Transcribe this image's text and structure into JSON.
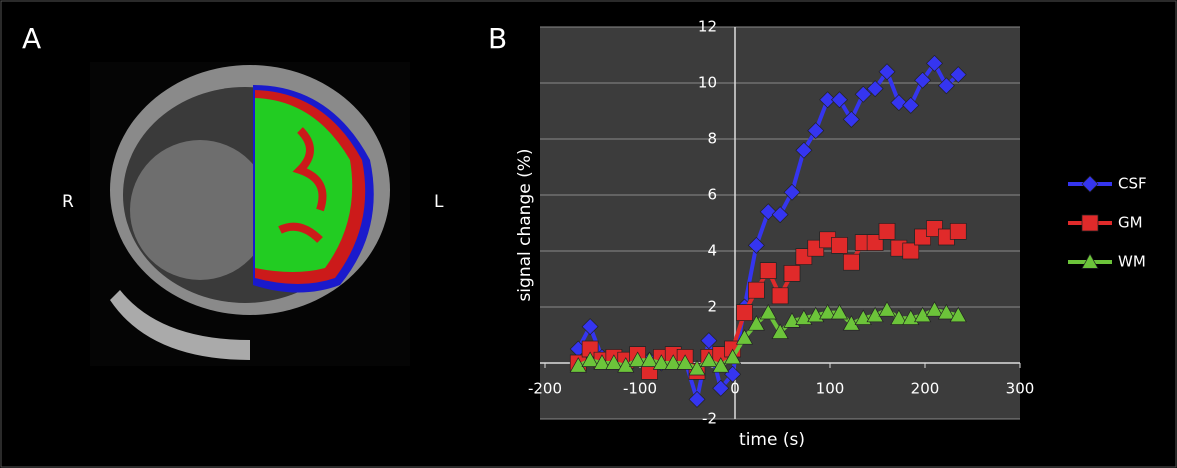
{
  "labels": {
    "panel_a": "A",
    "panel_b": "B",
    "right": "R",
    "left": "L"
  },
  "chart_data": {
    "type": "line",
    "x_label": "time (s)",
    "y_label": "signal change (%)",
    "x": [
      -165,
      -152.5,
      -140,
      -127.5,
      -115,
      -102.5,
      -90,
      -77.5,
      -65,
      -52.5,
      -40,
      -27.5,
      -15,
      -2.5,
      10,
      22.5,
      35,
      47.5,
      60,
      72.5,
      85,
      97.5,
      110,
      122.5,
      135,
      147.5,
      160,
      172.5,
      185,
      197.5,
      210,
      222.5,
      235
    ],
    "series": [
      {
        "name": "CSF",
        "color": "#3535f0",
        "marker": "diamond",
        "values": [
          0.5,
          1.3,
          0.2,
          0.1,
          0.0,
          0.2,
          0.1,
          0.0,
          0.2,
          0.1,
          -1.3,
          0.8,
          -0.9,
          -0.4,
          2.0,
          4.2,
          5.4,
          5.3,
          6.1,
          7.6,
          8.3,
          9.4,
          9.4,
          8.7,
          9.6,
          9.8,
          10.4,
          9.3,
          9.2,
          10.1,
          10.7,
          9.9,
          10.3
        ]
      },
      {
        "name": "GM",
        "color": "#e02a2a",
        "marker": "square",
        "values": [
          0.0,
          0.5,
          0.1,
          0.2,
          0.1,
          0.3,
          -0.3,
          0.2,
          0.3,
          0.2,
          -0.3,
          0.2,
          0.3,
          0.5,
          1.8,
          2.6,
          3.3,
          2.4,
          3.2,
          3.8,
          4.1,
          4.4,
          4.2,
          3.6,
          4.3,
          4.3,
          4.7,
          4.1,
          4.0,
          4.5,
          4.8,
          4.5,
          4.7
        ]
      },
      {
        "name": "WM",
        "color": "#6cc43a",
        "marker": "triangle",
        "values": [
          -0.1,
          0.1,
          0.0,
          0.0,
          -0.1,
          0.1,
          0.1,
          0.0,
          0.0,
          0.0,
          -0.2,
          0.1,
          -0.1,
          0.2,
          0.9,
          1.4,
          1.8,
          1.1,
          1.5,
          1.6,
          1.7,
          1.8,
          1.8,
          1.4,
          1.6,
          1.7,
          1.9,
          1.6,
          1.6,
          1.7,
          1.9,
          1.8,
          1.7
        ]
      }
    ],
    "xlim": [
      -200,
      300
    ],
    "xticks": [
      -200,
      -100,
      0,
      100,
      200,
      300
    ],
    "ylim": [
      -2,
      12
    ],
    "yticks": [
      -2,
      0,
      2,
      4,
      6,
      8,
      10,
      12
    ],
    "grid": true,
    "legend": "right"
  }
}
